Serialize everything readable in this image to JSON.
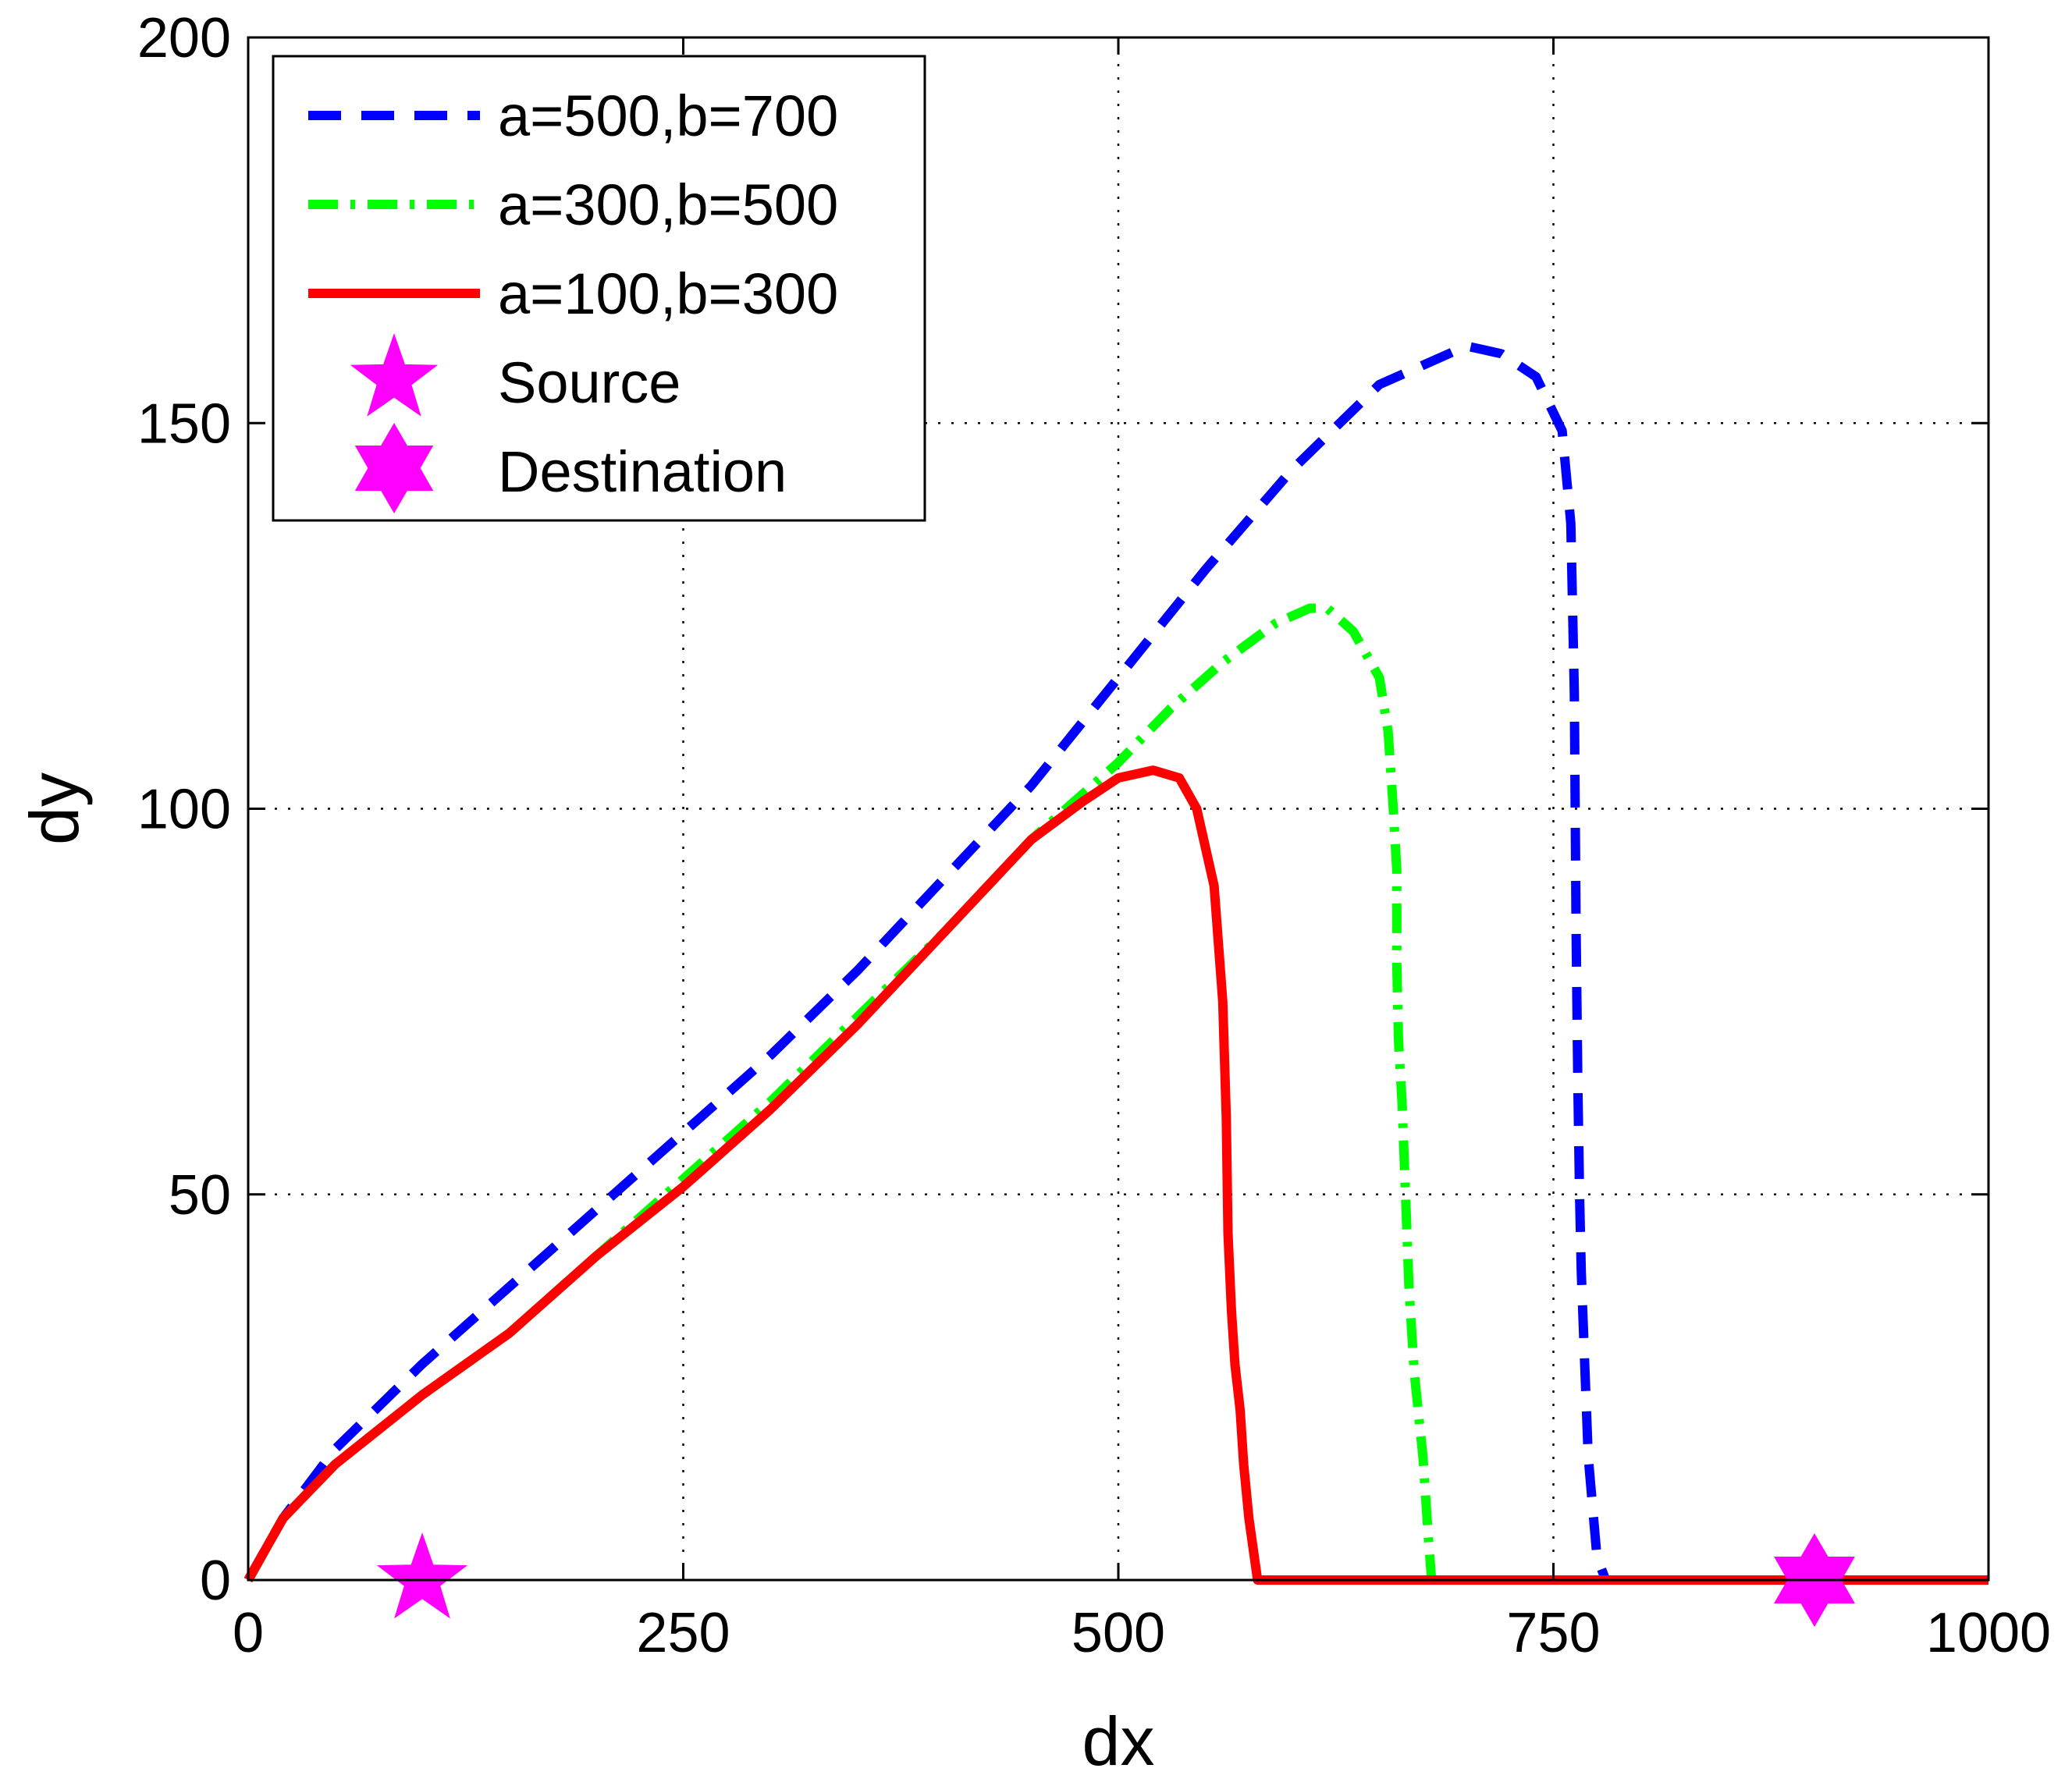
{
  "chart_data": {
    "type": "line",
    "title": "",
    "xlabel": "dx",
    "ylabel": "dy",
    "xlim": [
      0,
      1000
    ],
    "ylim": [
      0,
      200
    ],
    "xticks": [
      0,
      250,
      500,
      750,
      1000
    ],
    "yticks": [
      0,
      50,
      100,
      150,
      200
    ],
    "grid": true,
    "legend_position": "top-left",
    "series": [
      {
        "name": "a=500,b=700",
        "color": "#0000ff",
        "style": "dashed",
        "x": [
          0,
          20,
          50,
          100,
          150,
          200,
          250,
          300,
          350,
          400,
          450,
          500,
          550,
          600,
          650,
          700,
          720,
          740,
          755,
          760,
          762,
          763,
          764,
          765,
          766,
          768,
          770,
          775,
          780
        ],
        "y": [
          0,
          8,
          17,
          28,
          38,
          48,
          58,
          68,
          79,
          91,
          103,
          117,
          131,
          144,
          155,
          160,
          159,
          156,
          149,
          137,
          115,
          85,
          65,
          50,
          40,
          28,
          16,
          3,
          0
        ]
      },
      {
        "name": "a=300,b=500",
        "color": "#00ff00",
        "style": "dashdot",
        "x": [
          0,
          20,
          50,
          100,
          150,
          200,
          250,
          300,
          350,
          400,
          450,
          480,
          500,
          530,
          560,
          590,
          610,
          620,
          635,
          650,
          655,
          658,
          660,
          660,
          661,
          663,
          665,
          667,
          670,
          675,
          678,
          680
        ],
        "y": [
          0,
          8,
          15,
          24,
          32,
          42,
          52,
          62,
          73,
          84,
          96,
          102,
          106,
          113,
          119,
          124,
          126,
          126,
          123,
          117,
          110,
          100,
          92,
          80,
          70,
          62,
          50,
          38,
          27,
          16,
          6,
          0
        ]
      },
      {
        "name": "a=100,b=300",
        "color": "#ff0000",
        "style": "solid",
        "x": [
          0,
          20,
          50,
          100,
          150,
          200,
          250,
          300,
          350,
          400,
          450,
          480,
          500,
          520,
          535,
          545,
          555,
          560,
          562,
          563,
          565,
          567,
          570,
          572,
          575,
          580,
          600,
          700,
          800,
          900,
          1000
        ],
        "y": [
          0,
          8,
          15,
          24,
          32,
          42,
          51,
          61,
          72,
          84,
          96,
          101,
          104,
          105,
          104,
          100,
          90,
          75,
          60,
          45,
          35,
          28,
          22,
          15,
          8,
          0,
          0,
          0,
          0,
          0,
          0
        ]
      }
    ],
    "markers": [
      {
        "name": "Source",
        "color": "#ff00ff",
        "shape": "pentagram",
        "x": 100,
        "y": 0
      },
      {
        "name": "Destination",
        "color": "#ff00ff",
        "shape": "hexagram",
        "x": 900,
        "y": 0
      }
    ]
  }
}
